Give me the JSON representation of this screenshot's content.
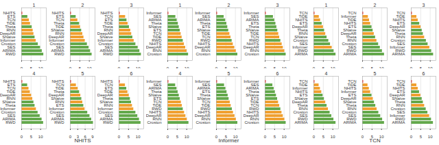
{
  "chart_data": [
    {
      "type": "bar",
      "orientation": "horizontal",
      "title": "1",
      "grid": true,
      "xlim": [
        0,
        13
      ],
      "xticks": [
        0,
        5,
        10
      ],
      "categories": [
        "NHITS",
        "ETS",
        "TCN",
        "TiDE",
        "Theta",
        "RNN",
        "DeepAR",
        "SNaive",
        "Informer",
        "Croston",
        "SES",
        "ARIMA",
        "RWD"
      ],
      "values": [
        0.5,
        3.2,
        4.0,
        4.6,
        5.5,
        6.0,
        6.4,
        7.0,
        7.6,
        8.7,
        9.9,
        10.8,
        11.6
      ],
      "colors": [
        "#e8140c",
        "#63a84b",
        "#f0a030",
        "#f0a030",
        "#63a84b",
        "#f0a030",
        "#f0a030",
        "#63a84b",
        "#f0a030",
        "#63a84b",
        "#63a84b",
        "#63a84b",
        "#63a84b"
      ]
    },
    {
      "type": "bar",
      "orientation": "horizontal",
      "title": "2",
      "grid": true,
      "xlim": [
        0,
        13
      ],
      "xticks": [
        0,
        5,
        10
      ],
      "categories": [
        "NHITS",
        "ETS",
        "TCN",
        "Theta",
        "TiDE",
        "SNaive",
        "RNN",
        "DeepAR",
        "Informer",
        "Croston",
        "SES",
        "ARIMA",
        "RWD"
      ],
      "values": [
        0.5,
        3.0,
        3.9,
        4.8,
        5.3,
        5.9,
        6.5,
        7.1,
        7.8,
        8.9,
        9.8,
        10.6,
        11.4
      ],
      "colors": [
        "#e8140c",
        "#63a84b",
        "#f0a030",
        "#63a84b",
        "#f0a030",
        "#63a84b",
        "#f0a030",
        "#f0a030",
        "#f0a030",
        "#63a84b",
        "#63a84b",
        "#63a84b",
        "#63a84b"
      ]
    },
    {
      "type": "bar",
      "orientation": "horizontal",
      "title": "3",
      "grid": true,
      "xlim": [
        0,
        13
      ],
      "xticks": [
        0,
        5,
        10
      ],
      "categories": [
        "NHITS",
        "TCN",
        "ETS",
        "TiDE",
        "Theta",
        "RNN",
        "DeepAR",
        "SNaive",
        "Informer",
        "Croston",
        "SES",
        "ARIMA",
        "RWD"
      ],
      "values": [
        0.5,
        3.4,
        4.1,
        4.7,
        5.4,
        6.1,
        6.6,
        7.2,
        7.9,
        8.8,
        10.0,
        10.9,
        11.7
      ],
      "colors": [
        "#e8140c",
        "#f0a030",
        "#63a84b",
        "#f0a030",
        "#63a84b",
        "#f0a030",
        "#f0a030",
        "#63a84b",
        "#f0a030",
        "#63a84b",
        "#63a84b",
        "#63a84b",
        "#63a84b"
      ]
    },
    {
      "type": "bar",
      "orientation": "horizontal",
      "title": "4",
      "grid": true,
      "xlim": [
        0,
        13
      ],
      "xticks": [
        0,
        5,
        10
      ],
      "categories": [
        "NHITS",
        "ETS",
        "TCN",
        "TiDE",
        "DeepAR",
        "RNN",
        "SNaive",
        "Theta",
        "Informer",
        "Croston",
        "SES",
        "ARIMA",
        "RWD"
      ],
      "values": [
        0.5,
        3.1,
        3.8,
        4.5,
        5.2,
        5.8,
        6.4,
        7.0,
        7.7,
        8.6,
        9.7,
        10.7,
        11.5
      ],
      "colors": [
        "#e8140c",
        "#63a84b",
        "#f0a030",
        "#f0a030",
        "#f0a030",
        "#f0a030",
        "#63a84b",
        "#63a84b",
        "#f0a030",
        "#63a84b",
        "#63a84b",
        "#63a84b",
        "#63a84b"
      ]
    },
    {
      "type": "bar",
      "orientation": "horizontal",
      "title": "5",
      "grid": true,
      "xlim": [
        0,
        10
      ],
      "xticks": [
        0,
        3,
        6,
        9
      ],
      "xlabel": "NHITS",
      "categories": [
        "NHITS",
        "TCN",
        "TiDE",
        "Theta",
        "DeepAR",
        "SNaive",
        "RNN",
        "ETS",
        "Informer",
        "Croston",
        "SES",
        "ARIMA",
        "RWD"
      ],
      "values": [
        0.4,
        2.4,
        3.1,
        3.7,
        4.2,
        4.6,
        5.0,
        5.4,
        5.9,
        7.0,
        7.9,
        8.6,
        9.3
      ],
      "colors": [
        "#e8140c",
        "#f0a030",
        "#f0a030",
        "#63a84b",
        "#f0a030",
        "#63a84b",
        "#f0a030",
        "#63a84b",
        "#f0a030",
        "#63a84b",
        "#63a84b",
        "#63a84b",
        "#63a84b"
      ]
    },
    {
      "type": "bar",
      "orientation": "horizontal",
      "title": "6",
      "grid": true,
      "xlim": [
        0,
        13
      ],
      "xticks": [
        0,
        5,
        10
      ],
      "categories": [
        "NHITS",
        "TCN",
        "ETS",
        "TiDE",
        "DeepAR",
        "Theta",
        "SNaive",
        "RNN",
        "Informer",
        "Croston",
        "SES",
        "ARIMA",
        "RWD"
      ],
      "values": [
        0.5,
        3.3,
        4.0,
        4.6,
        5.3,
        5.9,
        6.5,
        7.0,
        7.7,
        8.8,
        9.8,
        10.7,
        11.5
      ],
      "colors": [
        "#e8140c",
        "#f0a030",
        "#63a84b",
        "#f0a030",
        "#f0a030",
        "#63a84b",
        "#63a84b",
        "#f0a030",
        "#f0a030",
        "#63a84b",
        "#63a84b",
        "#63a84b",
        "#63a84b"
      ]
    },
    {
      "type": "bar",
      "orientation": "horizontal",
      "title": "1",
      "grid": true,
      "xlim": [
        0,
        13
      ],
      "xticks": [
        0,
        5,
        10
      ],
      "categories": [
        "Informer",
        "SES",
        "ARIMA",
        "Theta",
        "SNaive",
        "ETS",
        "TCN",
        "TiDE",
        "RWD",
        "NHITS",
        "DeepAR",
        "RNN",
        "Croston"
      ],
      "values": [
        0.5,
        4.2,
        4.9,
        5.5,
        6.0,
        6.5,
        7.0,
        7.5,
        8.1,
        8.7,
        9.4,
        10.1,
        10.9
      ],
      "colors": [
        "#e8140c",
        "#63a84b",
        "#63a84b",
        "#63a84b",
        "#63a84b",
        "#63a84b",
        "#f0a030",
        "#f0a030",
        "#63a84b",
        "#f0a030",
        "#f0a030",
        "#f0a030",
        "#63a84b"
      ]
    },
    {
      "type": "bar",
      "orientation": "horizontal",
      "title": "2",
      "grid": true,
      "xlim": [
        0,
        13
      ],
      "xticks": [
        0,
        5,
        10
      ],
      "categories": [
        "Informer",
        "SES",
        "ARIMA",
        "Theta",
        "ETS",
        "SNaive",
        "TiDE",
        "TCN",
        "RWD",
        "NHITS",
        "DeepAR",
        "RNN",
        "Croston"
      ],
      "values": [
        0.5,
        4.0,
        4.8,
        5.4,
        5.9,
        6.4,
        7.0,
        7.6,
        8.2,
        8.8,
        9.6,
        10.4,
        11.2
      ],
      "colors": [
        "#e8140c",
        "#63a84b",
        "#63a84b",
        "#63a84b",
        "#63a84b",
        "#63a84b",
        "#f0a030",
        "#f0a030",
        "#63a84b",
        "#f0a030",
        "#f0a030",
        "#f0a030",
        "#63a84b"
      ]
    },
    {
      "type": "bar",
      "orientation": "horizontal",
      "title": "3",
      "grid": true,
      "xlim": [
        0,
        13
      ],
      "xticks": [
        0,
        5,
        10
      ],
      "categories": [
        "Informer",
        "SES",
        "ARIMA",
        "ETS",
        "Theta",
        "SNaive",
        "TiDE",
        "TCN",
        "RWD",
        "NHITS",
        "DeepAR",
        "RNN",
        "Croston"
      ],
      "values": [
        0.5,
        4.3,
        5.0,
        5.6,
        6.1,
        6.6,
        7.1,
        7.6,
        8.2,
        8.9,
        9.5,
        10.3,
        11.0
      ],
      "colors": [
        "#e8140c",
        "#63a84b",
        "#63a84b",
        "#63a84b",
        "#63a84b",
        "#63a84b",
        "#f0a030",
        "#f0a030",
        "#63a84b",
        "#f0a030",
        "#f0a030",
        "#f0a030",
        "#63a84b"
      ]
    },
    {
      "type": "bar",
      "orientation": "horizontal",
      "title": "4",
      "grid": true,
      "xlim": [
        0,
        13
      ],
      "xticks": [
        0,
        5,
        10
      ],
      "categories": [
        "Informer",
        "SES",
        "ARIMA",
        "Theta",
        "SNaive",
        "ETS",
        "TCN",
        "TiDE",
        "RWD",
        "NHITS",
        "DeepAR",
        "RNN",
        "Croston"
      ],
      "values": [
        0.5,
        4.1,
        4.8,
        5.4,
        6.0,
        6.5,
        7.1,
        7.6,
        8.1,
        8.8,
        9.5,
        10.2,
        11.1
      ],
      "colors": [
        "#e8140c",
        "#63a84b",
        "#63a84b",
        "#63a84b",
        "#63a84b",
        "#63a84b",
        "#f0a030",
        "#f0a030",
        "#63a84b",
        "#f0a030",
        "#f0a030",
        "#f0a030",
        "#63a84b"
      ]
    },
    {
      "type": "bar",
      "orientation": "horizontal",
      "title": "5",
      "grid": true,
      "xlim": [
        0,
        13
      ],
      "xticks": [
        0,
        5,
        10
      ],
      "xlabel": "Informer",
      "categories": [
        "Informer",
        "SES",
        "ARIMA",
        "ETS",
        "Theta",
        "SNaive",
        "TCN",
        "TiDE",
        "RWD",
        "NHITS",
        "DeepAR",
        "RNN",
        "Croston"
      ],
      "values": [
        0.5,
        4.2,
        4.9,
        5.5,
        6.1,
        6.6,
        7.2,
        7.7,
        8.3,
        8.9,
        9.7,
        10.4,
        11.2
      ],
      "colors": [
        "#e8140c",
        "#63a84b",
        "#63a84b",
        "#63a84b",
        "#63a84b",
        "#63a84b",
        "#f0a030",
        "#f0a030",
        "#63a84b",
        "#f0a030",
        "#f0a030",
        "#f0a030",
        "#63a84b"
      ]
    },
    {
      "type": "bar",
      "orientation": "horizontal",
      "title": "6",
      "grid": true,
      "xlim": [
        0,
        13
      ],
      "xticks": [
        0,
        5,
        10
      ],
      "categories": [
        "Informer",
        "SES",
        "ARIMA",
        "Theta",
        "SNaive",
        "ETS",
        "TiDE",
        "TCN",
        "RWD",
        "NHITS",
        "DeepAR",
        "RNN",
        "Croston"
      ],
      "values": [
        0.5,
        4.0,
        4.7,
        5.3,
        5.9,
        6.5,
        7.0,
        7.6,
        8.2,
        8.8,
        9.5,
        10.3,
        11.0
      ],
      "colors": [
        "#e8140c",
        "#63a84b",
        "#63a84b",
        "#63a84b",
        "#63a84b",
        "#63a84b",
        "#f0a030",
        "#f0a030",
        "#63a84b",
        "#f0a030",
        "#f0a030",
        "#f0a030",
        "#63a84b"
      ]
    },
    {
      "type": "bar",
      "orientation": "horizontal",
      "title": "1",
      "grid": true,
      "xlim": [
        0,
        13
      ],
      "xticks": [
        0,
        5,
        10
      ],
      "categories": [
        "TCN",
        "TiDE",
        "NHITS",
        "ETS",
        "DeepAR",
        "Theta",
        "RNN",
        "SNaive",
        "Croston",
        "SES",
        "Informer",
        "RWD",
        "ARIMA"
      ],
      "values": [
        0.5,
        2.8,
        3.5,
        4.3,
        5.0,
        5.6,
        6.2,
        6.9,
        7.8,
        8.7,
        9.6,
        10.6,
        11.6
      ],
      "colors": [
        "#e8140c",
        "#f0a030",
        "#f0a030",
        "#63a84b",
        "#f0a030",
        "#63a84b",
        "#f0a030",
        "#63a84b",
        "#63a84b",
        "#63a84b",
        "#f0a030",
        "#63a84b",
        "#63a84b"
      ]
    },
    {
      "type": "bar",
      "orientation": "horizontal",
      "title": "2",
      "grid": true,
      "xlim": [
        0,
        13
      ],
      "xticks": [
        0,
        5,
        10
      ],
      "categories": [
        "TCN",
        "Informer",
        "TiDE",
        "NHITS",
        "ETS",
        "SNaive",
        "DeepAR",
        "Theta",
        "RNN",
        "Croston",
        "SES",
        "RWD",
        "ARIMA"
      ],
      "values": [
        0.5,
        3.0,
        3.6,
        4.2,
        4.9,
        5.5,
        6.1,
        6.8,
        7.5,
        8.4,
        9.3,
        10.4,
        11.5
      ],
      "colors": [
        "#e8140c",
        "#f0a030",
        "#f0a030",
        "#f0a030",
        "#63a84b",
        "#63a84b",
        "#f0a030",
        "#63a84b",
        "#f0a030",
        "#63a84b",
        "#63a84b",
        "#63a84b",
        "#63a84b"
      ]
    },
    {
      "type": "bar",
      "orientation": "horizontal",
      "title": "3",
      "grid": true,
      "xlim": [
        0,
        13
      ],
      "xticks": [
        0,
        5,
        10
      ],
      "categories": [
        "TCN",
        "TiDE",
        "NHITS",
        "ETS",
        "DeepAR",
        "SNaive",
        "Theta",
        "RNN",
        "Croston",
        "SES",
        "Informer",
        "RWD",
        "ARIMA"
      ],
      "values": [
        0.5,
        2.9,
        3.6,
        4.4,
        5.1,
        5.7,
        6.3,
        7.0,
        7.9,
        8.8,
        9.7,
        10.7,
        11.7
      ],
      "colors": [
        "#e8140c",
        "#f0a030",
        "#f0a030",
        "#63a84b",
        "#f0a030",
        "#63a84b",
        "#63a84b",
        "#f0a030",
        "#63a84b",
        "#63a84b",
        "#f0a030",
        "#63a84b",
        "#63a84b"
      ]
    },
    {
      "type": "bar",
      "orientation": "horizontal",
      "title": "4",
      "grid": true,
      "xlim": [
        0,
        13
      ],
      "xticks": [
        0,
        5,
        10
      ],
      "categories": [
        "TCN",
        "TiDE",
        "Informer",
        "NHITS",
        "ETS",
        "SNaive",
        "DeepAR",
        "Theta",
        "RNN",
        "Croston",
        "SES",
        "RWD",
        "ARIMA"
      ],
      "values": [
        0.5,
        2.7,
        3.4,
        4.1,
        4.8,
        5.5,
        6.2,
        6.9,
        7.6,
        8.5,
        9.4,
        10.5,
        11.6
      ],
      "colors": [
        "#e8140c",
        "#f0a030",
        "#f0a030",
        "#f0a030",
        "#63a84b",
        "#63a84b",
        "#f0a030",
        "#63a84b",
        "#f0a030",
        "#63a84b",
        "#63a84b",
        "#63a84b",
        "#63a84b"
      ]
    },
    {
      "type": "bar",
      "orientation": "horizontal",
      "title": "5",
      "grid": true,
      "xlim": [
        0,
        13
      ],
      "xticks": [
        0,
        5,
        10
      ],
      "xlabel": "TCN",
      "categories": [
        "TCN",
        "TiDE",
        "NHITS",
        "Informer",
        "ETS",
        "DeepAR",
        "SNaive",
        "Theta",
        "RNN",
        "Croston",
        "SES",
        "RWD",
        "ARIMA"
      ],
      "values": [
        0.5,
        2.8,
        3.5,
        4.2,
        4.9,
        5.6,
        6.2,
        6.9,
        7.6,
        8.5,
        9.5,
        10.5,
        11.5
      ],
      "colors": [
        "#e8140c",
        "#f0a030",
        "#f0a030",
        "#f0a030",
        "#63a84b",
        "#f0a030",
        "#63a84b",
        "#63a84b",
        "#f0a030",
        "#63a84b",
        "#63a84b",
        "#63a84b",
        "#63a84b"
      ]
    },
    {
      "type": "bar",
      "orientation": "horizontal",
      "title": "6",
      "grid": true,
      "xlim": [
        0,
        13
      ],
      "xticks": [
        0,
        5,
        10
      ],
      "categories": [
        "TCN",
        "TiDE",
        "NHITS",
        "ETS",
        "DeepAR",
        "SNaive",
        "Theta",
        "RNN",
        "Croston",
        "SES",
        "Informer",
        "RWD",
        "ARIMA"
      ],
      "values": [
        0.5,
        2.9,
        3.6,
        4.3,
        5.0,
        5.7,
        6.3,
        7.0,
        7.8,
        8.7,
        9.6,
        10.6,
        11.6
      ],
      "colors": [
        "#e8140c",
        "#f0a030",
        "#f0a030",
        "#63a84b",
        "#f0a030",
        "#63a84b",
        "#63a84b",
        "#f0a030",
        "#63a84b",
        "#63a84b",
        "#f0a030",
        "#63a84b",
        "#63a84b"
      ]
    }
  ]
}
